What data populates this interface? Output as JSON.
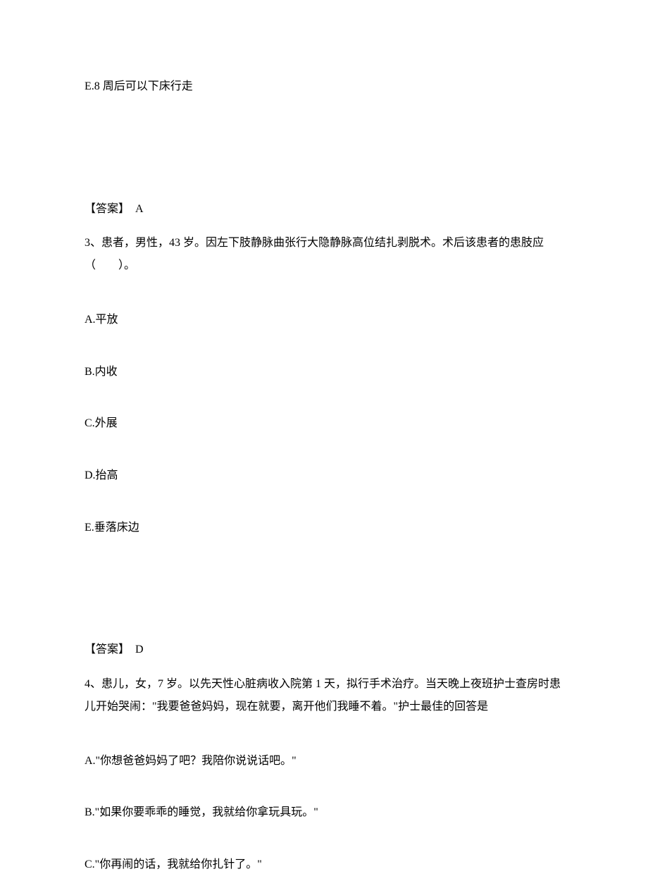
{
  "q2": {
    "optionE": "E.8 周后可以下床行走",
    "answer_label": "【答案】",
    "answer_value": "A"
  },
  "q3": {
    "question": "3、患者，男性，43 岁。因左下肢静脉曲张行大隐静脉高位结扎剥脱术。术后该患者的患肢应（　　）。",
    "optionA": "A.平放",
    "optionB": "B.内收",
    "optionC": "C.外展",
    "optionD": "D.抬高",
    "optionE": "E.垂落床边",
    "answer_label": "【答案】",
    "answer_value": "D"
  },
  "q4": {
    "question": "4、患儿，女，7 岁。以先天性心脏病收入院第 1 天，拟行手术治疗。当天晚上夜班护士查房时患儿开始哭闹：\"我要爸爸妈妈，现在就要，离开他们我睡不着。\"护士最佳的回答是",
    "optionA": "A.\"你想爸爸妈妈了吧？我陪你说说话吧。\"",
    "optionB": "B.\"如果你要乖乖的睡觉，我就给你拿玩具玩。\"",
    "optionC": "C.\"你再闹的话，我就给你扎针了。\""
  }
}
